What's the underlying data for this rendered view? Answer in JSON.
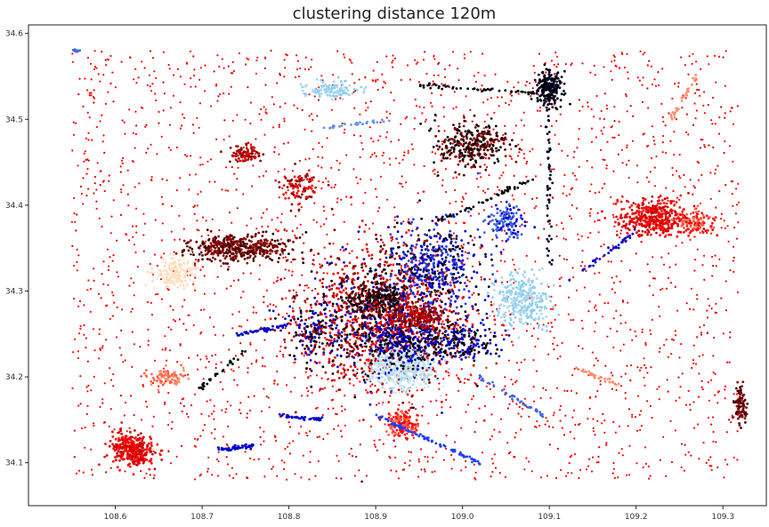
{
  "chart_data": {
    "type": "scatter",
    "title": "clustering distance 120m",
    "xlabel": "",
    "ylabel": "",
    "xlim": [
      108.5,
      109.35
    ],
    "ylim": [
      34.05,
      34.61
    ],
    "xticks": [
      108.6,
      108.7,
      108.8,
      108.9,
      109.0,
      109.1,
      109.2,
      109.3
    ],
    "yticks": [
      34.1,
      34.2,
      34.3,
      34.4,
      34.5,
      34.6
    ],
    "xtick_labels": [
      "108.6",
      "108.7",
      "108.8",
      "108.9",
      "109.0",
      "109.1",
      "109.2",
      "109.3"
    ],
    "ytick_labels": [
      "34.1",
      "34.2",
      "34.3",
      "34.4",
      "34.5",
      "34.6"
    ],
    "grid": false,
    "legend": "none",
    "palette": [
      "#ff0000",
      "#cc0000",
      "#8b0000",
      "#4a0000",
      "#000000",
      "#00002a",
      "#0000cd",
      "#1f3fff",
      "#4169e1",
      "#6495ed",
      "#87cefa",
      "#add8e6",
      "#ffdab9",
      "#ff8c69",
      "#ff6347"
    ],
    "background_noise": {
      "color": "#ff0000",
      "x_range": [
        108.55,
        109.32
      ],
      "y_range": [
        34.08,
        34.58
      ],
      "approx_count": 2600
    },
    "clusters": [
      {
        "cx": 108.91,
        "cy": 34.27,
        "rx": 0.09,
        "ry": 0.08,
        "n": 1400,
        "colors": [
          "#ff0000",
          "#cc0000",
          "#8b0000",
          "#000000",
          "#0000cd"
        ]
      },
      {
        "cx": 108.93,
        "cy": 34.21,
        "rx": 0.04,
        "ry": 0.025,
        "n": 380,
        "colors": [
          "#add8e6",
          "#cde8f6"
        ]
      },
      {
        "cx": 109.07,
        "cy": 34.29,
        "rx": 0.03,
        "ry": 0.03,
        "n": 300,
        "colors": [
          "#add8e6",
          "#87cefa"
        ]
      },
      {
        "cx": 108.97,
        "cy": 34.33,
        "rx": 0.05,
        "ry": 0.05,
        "n": 420,
        "colors": [
          "#0000cd",
          "#1f3fff",
          "#00002a"
        ]
      },
      {
        "cx": 108.93,
        "cy": 34.24,
        "rx": 0.04,
        "ry": 0.03,
        "n": 280,
        "colors": [
          "#0000cd",
          "#000000"
        ]
      },
      {
        "cx": 109.0,
        "cy": 34.24,
        "rx": 0.04,
        "ry": 0.02,
        "n": 200,
        "colors": [
          "#000000",
          "#0000cd"
        ]
      },
      {
        "cx": 108.74,
        "cy": 34.35,
        "rx": 0.06,
        "ry": 0.015,
        "n": 420,
        "colors": [
          "#4a0000",
          "#8b0000"
        ]
      },
      {
        "cx": 108.67,
        "cy": 34.32,
        "rx": 0.025,
        "ry": 0.02,
        "n": 160,
        "colors": [
          "#ffdab9",
          "#ffe4c4"
        ]
      },
      {
        "cx": 109.22,
        "cy": 34.385,
        "rx": 0.04,
        "ry": 0.02,
        "n": 360,
        "colors": [
          "#cc0000",
          "#ff0000"
        ]
      },
      {
        "cx": 108.62,
        "cy": 34.115,
        "rx": 0.025,
        "ry": 0.02,
        "n": 320,
        "colors": [
          "#ff0000",
          "#cc0000"
        ]
      },
      {
        "cx": 109.1,
        "cy": 34.535,
        "rx": 0.015,
        "ry": 0.02,
        "n": 200,
        "colors": [
          "#000000",
          "#00002a"
        ]
      },
      {
        "cx": 109.01,
        "cy": 34.47,
        "rx": 0.04,
        "ry": 0.025,
        "n": 300,
        "colors": [
          "#8b0000",
          "#4a0000",
          "#000000"
        ]
      },
      {
        "cx": 108.85,
        "cy": 34.535,
        "rx": 0.03,
        "ry": 0.01,
        "n": 120,
        "colors": [
          "#add8e6",
          "#87cefa"
        ]
      },
      {
        "cx": 108.93,
        "cy": 34.145,
        "rx": 0.02,
        "ry": 0.015,
        "n": 150,
        "colors": [
          "#ff6347",
          "#ff0000"
        ]
      },
      {
        "cx": 109.32,
        "cy": 34.17,
        "rx": 0.008,
        "ry": 0.02,
        "n": 90,
        "colors": [
          "#8b0000",
          "#4a0000"
        ]
      },
      {
        "cx": 108.9,
        "cy": 34.29,
        "rx": 0.03,
        "ry": 0.02,
        "n": 200,
        "colors": [
          "#000000",
          "#4a0000"
        ]
      },
      {
        "cx": 108.95,
        "cy": 34.27,
        "rx": 0.03,
        "ry": 0.015,
        "n": 180,
        "colors": [
          "#8b0000",
          "#cc0000"
        ]
      },
      {
        "cx": 109.27,
        "cy": 34.38,
        "rx": 0.025,
        "ry": 0.015,
        "n": 100,
        "colors": [
          "#ff0000",
          "#ff6347"
        ]
      },
      {
        "cx": 108.66,
        "cy": 34.2,
        "rx": 0.02,
        "ry": 0.01,
        "n": 80,
        "colors": [
          "#ff6347",
          "#ff8c69"
        ]
      },
      {
        "cx": 108.81,
        "cy": 34.42,
        "rx": 0.02,
        "ry": 0.02,
        "n": 90,
        "colors": [
          "#ff0000",
          "#8b0000"
        ]
      },
      {
        "cx": 108.75,
        "cy": 34.46,
        "rx": 0.02,
        "ry": 0.01,
        "n": 80,
        "colors": [
          "#8b0000",
          "#cc0000"
        ]
      },
      {
        "cx": 109.05,
        "cy": 34.38,
        "rx": 0.02,
        "ry": 0.02,
        "n": 120,
        "colors": [
          "#0000cd",
          "#4169e1"
        ]
      },
      {
        "cx": 108.83,
        "cy": 34.25,
        "rx": 0.03,
        "ry": 0.03,
        "n": 150,
        "colors": [
          "#000000",
          "#0000cd",
          "#cc0000"
        ]
      }
    ],
    "streaks": [
      {
        "x0": 108.9,
        "y0": 34.155,
        "x1": 109.02,
        "y1": 34.1,
        "n": 90,
        "color": "#1f3fff"
      },
      {
        "x0": 108.72,
        "y0": 34.115,
        "x1": 108.76,
        "y1": 34.12,
        "n": 50,
        "color": "#0000cd"
      },
      {
        "x0": 108.74,
        "y0": 34.25,
        "x1": 108.8,
        "y1": 34.26,
        "n": 50,
        "color": "#0000cd"
      },
      {
        "x0": 108.79,
        "y0": 34.155,
        "x1": 108.84,
        "y1": 34.15,
        "n": 40,
        "color": "#0000cd"
      },
      {
        "x0": 108.97,
        "y0": 34.38,
        "x1": 109.08,
        "y1": 34.43,
        "n": 50,
        "color": "#000000"
      },
      {
        "x0": 109.1,
        "y0": 34.56,
        "x1": 109.1,
        "y1": 34.33,
        "n": 60,
        "color": "#00002a"
      },
      {
        "x0": 109.08,
        "y0": 34.53,
        "x1": 108.95,
        "y1": 34.54,
        "n": 50,
        "color": "#000000"
      },
      {
        "x0": 108.55,
        "y0": 34.58,
        "x1": 108.56,
        "y1": 34.58,
        "n": 12,
        "color": "#4169e1"
      },
      {
        "x0": 108.69,
        "y0": 34.18,
        "x1": 108.75,
        "y1": 34.23,
        "n": 30,
        "color": "#000000"
      },
      {
        "x0": 109.12,
        "y0": 34.31,
        "x1": 109.2,
        "y1": 34.37,
        "n": 40,
        "color": "#0000cd"
      },
      {
        "x0": 109.02,
        "y0": 34.2,
        "x1": 109.1,
        "y1": 34.15,
        "n": 40,
        "color": "#4169e1"
      },
      {
        "x0": 109.24,
        "y0": 34.5,
        "x1": 109.27,
        "y1": 34.55,
        "n": 30,
        "color": "#ff8c69"
      },
      {
        "x0": 108.84,
        "y0": 34.49,
        "x1": 108.92,
        "y1": 34.5,
        "n": 30,
        "color": "#6495ed"
      },
      {
        "x0": 109.13,
        "y0": 34.21,
        "x1": 109.18,
        "y1": 34.19,
        "n": 30,
        "color": "#ff8c69"
      }
    ]
  }
}
